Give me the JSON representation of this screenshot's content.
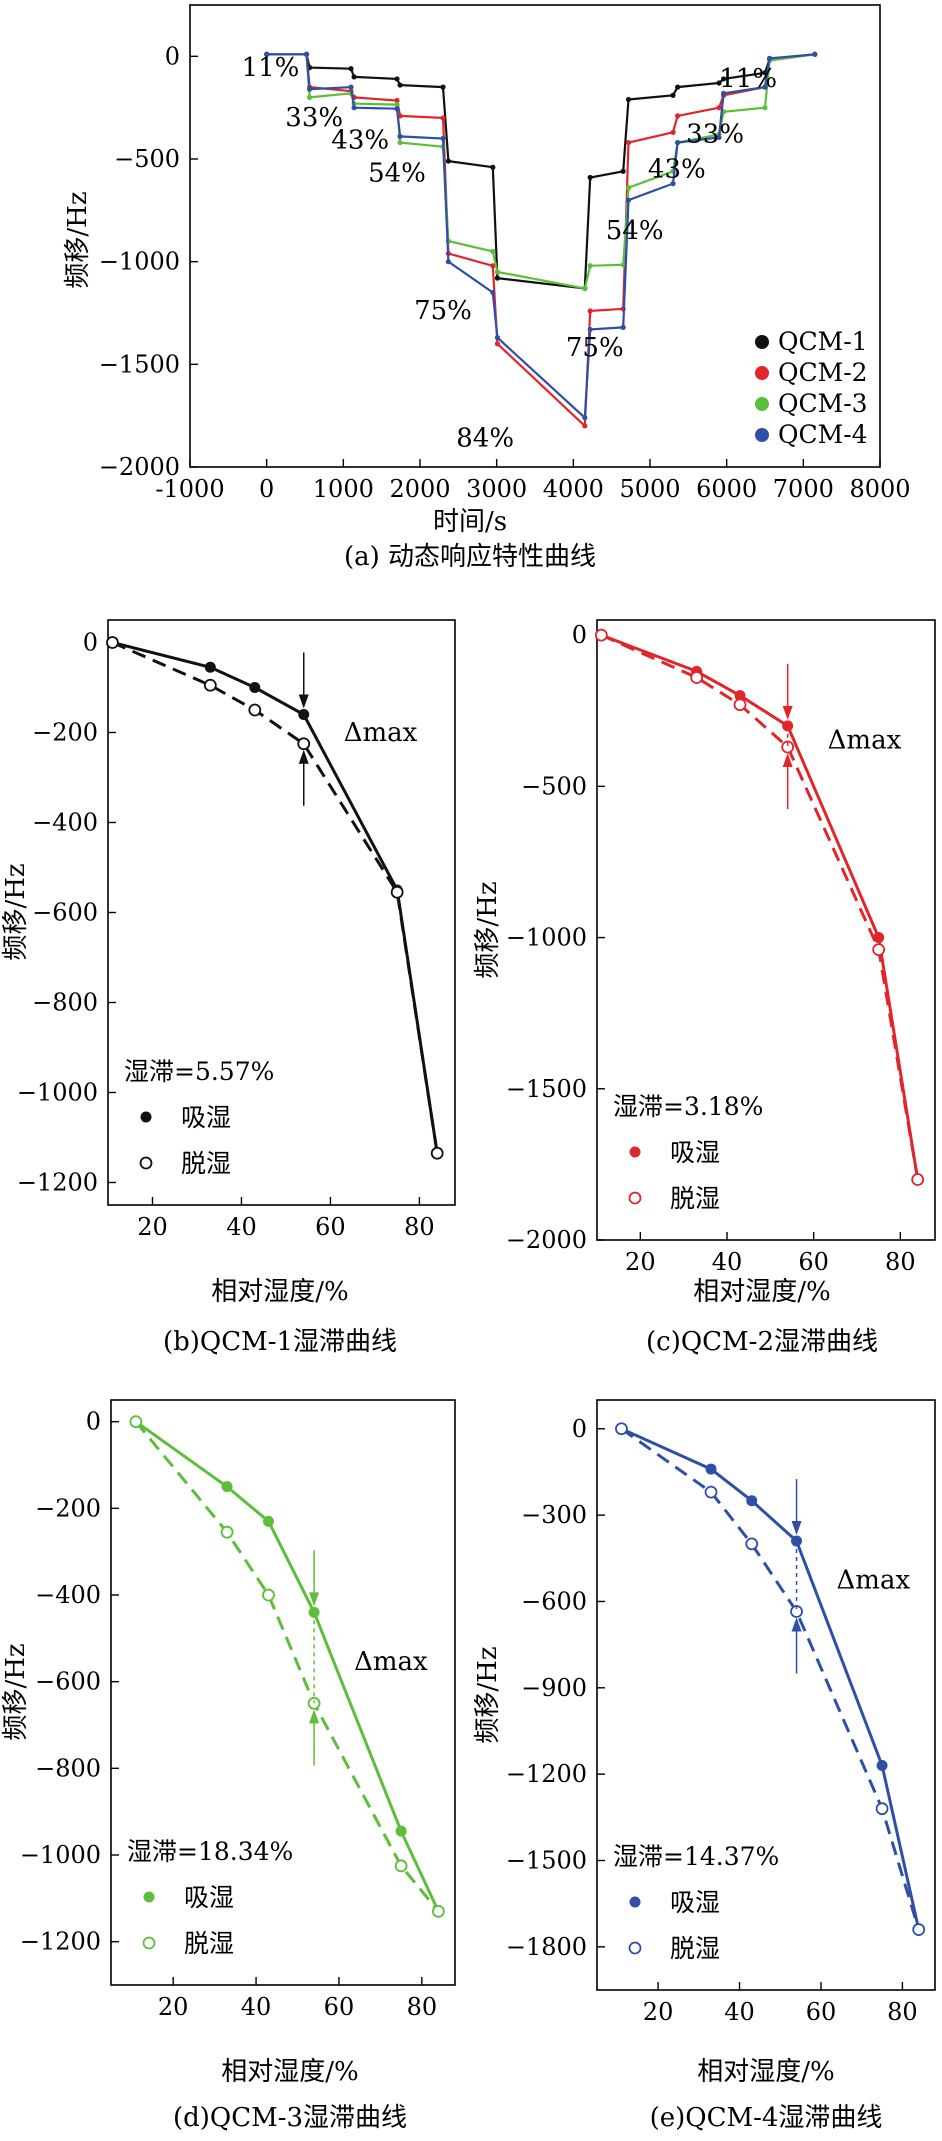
{
  "colors": {
    "QCM-1": "#111111",
    "QCM-2": "#e0262b",
    "QCM-3": "#5cbf3a",
    "QCM-4": "#2e4fa8"
  },
  "chart_data": [
    {
      "id": "a",
      "type": "line",
      "caption": "(a) 动态响应特性曲线",
      "xlabel": "时间/s",
      "ylabel": "频移/Hz",
      "xlim": [
        -1000,
        8000
      ],
      "ylim": [
        -2000,
        250
      ],
      "xticks": [
        -1000,
        0,
        1000,
        2000,
        3000,
        4000,
        5000,
        6000,
        7000,
        8000
      ],
      "yticks": [
        0,
        -500,
        -1000,
        -1500,
        -2000
      ],
      "annotations": [
        {
          "text": "11%",
          "x": 50,
          "y": -95
        },
        {
          "text": "33%",
          "x": 620,
          "y": -340
        },
        {
          "text": "43%",
          "x": 1220,
          "y": -450
        },
        {
          "text": "54%",
          "x": 1700,
          "y": -610
        },
        {
          "text": "75%",
          "x": 2300,
          "y": -1280
        },
        {
          "text": "84%",
          "x": 2850,
          "y": -1900
        },
        {
          "text": "75%",
          "x": 4280,
          "y": -1460
        },
        {
          "text": "54%",
          "x": 4800,
          "y": -890
        },
        {
          "text": "43%",
          "x": 5350,
          "y": -590
        },
        {
          "text": "33%",
          "x": 5850,
          "y": -420
        },
        {
          "text": "11%",
          "x": 6280,
          "y": -150
        }
      ],
      "series": [
        {
          "name": "QCM-1",
          "x": [
            0,
            520,
            560,
            1100,
            1140,
            1700,
            1740,
            2300,
            2370,
            2950,
            3010,
            4150,
            4220,
            4650,
            4720,
            5300,
            5360,
            5900,
            5960,
            6500,
            6560,
            7150
          ],
          "y": [
            10,
            10,
            -55,
            -60,
            -100,
            -110,
            -140,
            -150,
            -510,
            -540,
            -1080,
            -1130,
            -590,
            -560,
            -210,
            -190,
            -150,
            -130,
            -110,
            -80,
            -15,
            10
          ]
        },
        {
          "name": "QCM-2",
          "x": [
            0,
            520,
            560,
            1100,
            1140,
            1700,
            1740,
            2300,
            2370,
            2950,
            3010,
            4150,
            4220,
            4650,
            4720,
            5300,
            5360,
            5900,
            5960,
            6500,
            6560,
            7150
          ],
          "y": [
            10,
            10,
            -150,
            -170,
            -200,
            -215,
            -290,
            -300,
            -960,
            -1020,
            -1400,
            -1800,
            -1240,
            -1230,
            -420,
            -370,
            -290,
            -250,
            -190,
            -150,
            -20,
            10
          ]
        },
        {
          "name": "QCM-3",
          "x": [
            0,
            520,
            560,
            1100,
            1140,
            1700,
            1740,
            2300,
            2370,
            2950,
            3010,
            4150,
            4220,
            4650,
            4720,
            5300,
            5360,
            5900,
            5960,
            6500,
            6560,
            7150
          ],
          "y": [
            10,
            10,
            -200,
            -180,
            -230,
            -235,
            -420,
            -440,
            -900,
            -950,
            -1050,
            -1130,
            -1020,
            -1015,
            -640,
            -560,
            -420,
            -380,
            -270,
            -250,
            -20,
            10
          ]
        },
        {
          "name": "QCM-4",
          "x": [
            0,
            520,
            560,
            1100,
            1140,
            1700,
            1740,
            2300,
            2370,
            2950,
            3010,
            4150,
            4220,
            4650,
            4720,
            5300,
            5360,
            5900,
            5960,
            6500,
            6560,
            7150
          ],
          "y": [
            10,
            10,
            -160,
            -150,
            -250,
            -255,
            -390,
            -400,
            -1000,
            -1150,
            -1370,
            -1760,
            -1330,
            -1320,
            -700,
            -620,
            -420,
            -395,
            -180,
            -150,
            -10,
            10
          ]
        }
      ],
      "legend": [
        "QCM-1",
        "QCM-2",
        "QCM-3",
        "QCM-4"
      ]
    },
    {
      "id": "b",
      "type": "line",
      "caption": "(b)QCM-1湿滞曲线",
      "xlabel": "相对湿度/%",
      "ylabel": "频移/Hz",
      "color": "#111111",
      "xlim": [
        10,
        88
      ],
      "ylim": [
        -1250,
        50
      ],
      "xticks": [
        20,
        40,
        60,
        80
      ],
      "yticks": [
        0,
        -200,
        -400,
        -600,
        -800,
        -1000,
        -1200
      ],
      "hysteresis": "湿滞=5.57%",
      "delta_label": "Δmax",
      "arrow_x": 54,
      "legend_ads": "吸湿",
      "legend_des": "脱湿",
      "adsorption": {
        "x": [
          11,
          33,
          43,
          54,
          75,
          84
        ],
        "y": [
          0,
          -55,
          -100,
          -160,
          -550,
          -1135
        ]
      },
      "desorption": {
        "x": [
          11,
          33,
          43,
          54,
          75,
          84
        ],
        "y": [
          0,
          -95,
          -150,
          -225,
          -555,
          -1135
        ]
      }
    },
    {
      "id": "c",
      "type": "line",
      "caption": "(c)QCM-2湿滞曲线",
      "xlabel": "相对湿度/%",
      "ylabel": "频移/Hz",
      "color": "#e0262b",
      "xlim": [
        10,
        88
      ],
      "ylim": [
        -2000,
        50
      ],
      "xticks": [
        20,
        40,
        60,
        80
      ],
      "yticks": [
        0,
        -500,
        -1000,
        -1500,
        -2000
      ],
      "hysteresis": "湿滞=3.18%",
      "delta_label": "Δmax",
      "arrow_x": 54,
      "legend_ads": "吸湿",
      "legend_des": "脱湿",
      "adsorption": {
        "x": [
          11,
          33,
          43,
          54,
          75,
          84
        ],
        "y": [
          0,
          -120,
          -200,
          -300,
          -1000,
          -1800
        ]
      },
      "desorption": {
        "x": [
          11,
          33,
          43,
          54,
          75,
          84
        ],
        "y": [
          0,
          -140,
          -230,
          -370,
          -1040,
          -1800
        ]
      }
    },
    {
      "id": "d",
      "type": "line",
      "caption": "(d)QCM-3湿滞曲线",
      "xlabel": "相对湿度/%",
      "ylabel": "频移/Hz",
      "color": "#5cbf3a",
      "xlim": [
        5,
        88
      ],
      "ylim": [
        -1300,
        50
      ],
      "xticks": [
        20,
        40,
        60,
        80
      ],
      "yticks": [
        0,
        -200,
        -400,
        -600,
        -800,
        -1000,
        -1200
      ],
      "hysteresis": "湿滞=18.34%",
      "delta_label": "Δmax",
      "arrow_x": 54,
      "legend_ads": "吸湿",
      "legend_des": "脱湿",
      "adsorption": {
        "x": [
          11,
          33,
          43,
          54,
          75,
          84
        ],
        "y": [
          0,
          -150,
          -230,
          -440,
          -945,
          -1130
        ]
      },
      "desorption": {
        "x": [
          11,
          33,
          43,
          54,
          75,
          84
        ],
        "y": [
          0,
          -255,
          -400,
          -650,
          -1025,
          -1130
        ]
      }
    },
    {
      "id": "e",
      "type": "line",
      "caption": "(e)QCM-4湿滞曲线",
      "xlabel": "相对湿度/%",
      "ylabel": "频移/Hz",
      "color": "#2e4fa8",
      "xlim": [
        5,
        88
      ],
      "ylim": [
        -1950,
        100
      ],
      "xticks": [
        20,
        40,
        60,
        80
      ],
      "yticks": [
        0,
        -300,
        -600,
        -900,
        -1200,
        -1500,
        -1800
      ],
      "hysteresis": "湿滞=14.37%",
      "delta_label": "Δmax",
      "arrow_x": 54,
      "legend_ads": "吸湿",
      "legend_des": "脱湿",
      "adsorption": {
        "x": [
          11,
          33,
          43,
          54,
          75,
          84
        ],
        "y": [
          0,
          -140,
          -250,
          -390,
          -1170,
          -1740
        ]
      },
      "desorption": {
        "x": [
          11,
          33,
          43,
          54,
          75,
          84
        ],
        "y": [
          0,
          -220,
          -400,
          -635,
          -1320,
          -1740
        ]
      }
    }
  ]
}
